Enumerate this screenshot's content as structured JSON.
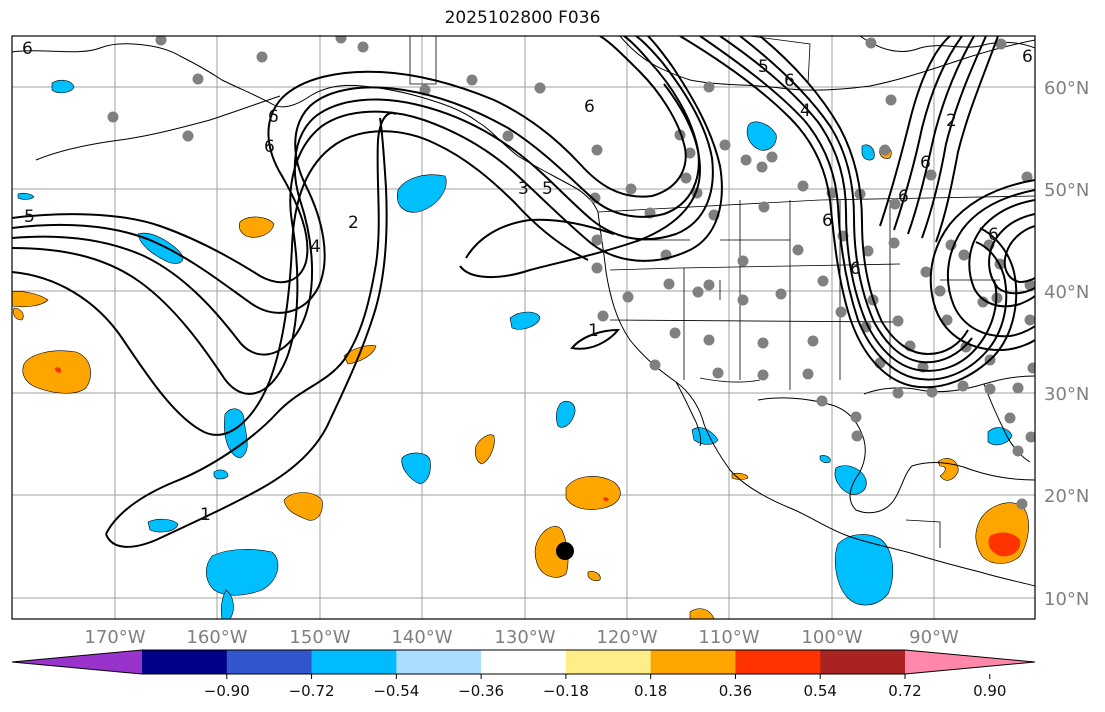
{
  "title": "2025102800 F036",
  "map": {
    "lon_labels": [
      "170°W",
      "160°W",
      "150°W",
      "140°W",
      "130°W",
      "120°W",
      "110°W",
      "100°W",
      "90°W"
    ],
    "lat_labels": [
      "60°N",
      "50°N",
      "40°N",
      "30°N",
      "20°N",
      "10°N"
    ],
    "contour_labels": [
      "6",
      "6",
      "5",
      "6",
      "4",
      "2",
      "3",
      "5",
      "6",
      "6",
      "1",
      "1",
      "6",
      "6",
      "5",
      "6",
      "4",
      "6",
      "2",
      "6",
      "6"
    ]
  },
  "colorbar": {
    "tick_labels": [
      "−0.90",
      "−0.72",
      "−0.54",
      "−0.36",
      "−0.18",
      "0.18",
      "0.36",
      "0.54",
      "0.72",
      "0.90"
    ],
    "colors": [
      "#9933cc",
      "#000088",
      "#3355cc",
      "#00bbff",
      "#aaddff",
      "#ffffff",
      "#ffee88",
      "#ffa500",
      "#ff3300",
      "#aa2222",
      "#ff88aa"
    ],
    "bins": [
      -0.9,
      -0.72,
      -0.54,
      -0.36,
      -0.18,
      0.18,
      0.36,
      0.54,
      0.72,
      0.9
    ]
  },
  "colors": {
    "cyan": "#00bfff",
    "orange": "#ffa500",
    "red": "#ff3300",
    "station": "#808080",
    "contour": "#000000"
  }
}
